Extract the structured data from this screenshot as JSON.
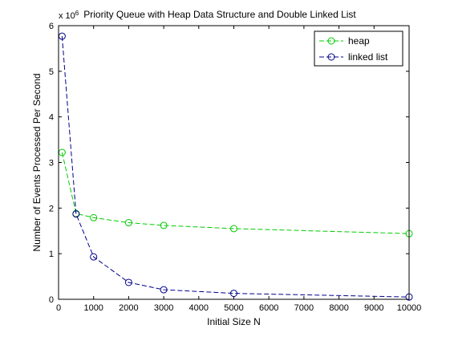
{
  "chart_data": {
    "type": "line",
    "title": "Priority Queue with Heap Data Structure and Double Linked List",
    "xlabel": "Initial Size N",
    "ylabel": "Number of Events Processed Per Second",
    "exponent_base": "x 10",
    "exponent_power": "6",
    "xlim": [
      0,
      10000
    ],
    "ylim": [
      0,
      6
    ],
    "xticks": [
      0,
      1000,
      2000,
      3000,
      4000,
      5000,
      6000,
      7000,
      8000,
      9000,
      10000
    ],
    "yticks": [
      0,
      1,
      2,
      3,
      4,
      5,
      6
    ],
    "grid": false,
    "legend_position": "top-right",
    "series": [
      {
        "name": "heap",
        "color": "#00cc00",
        "marker": "circle",
        "linestyle": "dashed",
        "x": [
          100,
          500,
          1000,
          2000,
          3000,
          5000,
          10000
        ],
        "y": [
          3.22,
          1.88,
          1.79,
          1.68,
          1.62,
          1.55,
          1.44
        ]
      },
      {
        "name": "linked list",
        "color": "#00008b",
        "marker": "circle",
        "linestyle": "dashed",
        "x": [
          100,
          500,
          1000,
          2000,
          3000,
          5000,
          10000
        ],
        "y": [
          5.77,
          1.87,
          0.93,
          0.37,
          0.21,
          0.13,
          0.05
        ]
      }
    ]
  }
}
